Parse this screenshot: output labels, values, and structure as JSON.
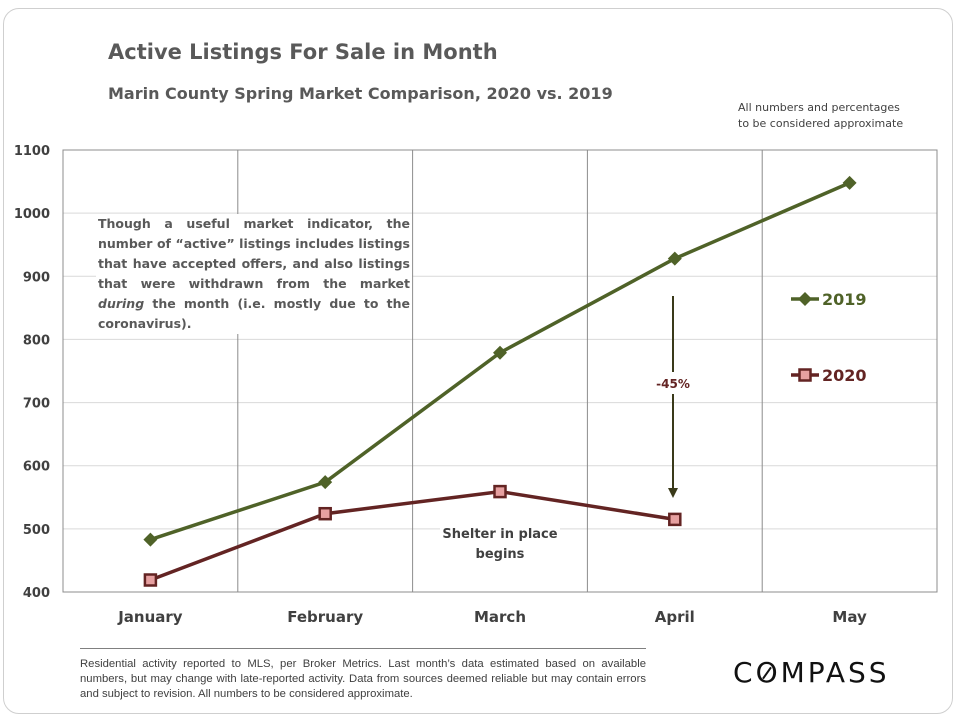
{
  "chart_data": {
    "type": "line",
    "title": "Active Listings For Sale in Month",
    "subtitle": "Marin County Spring Market Comparison,  2020 vs. 2019",
    "categories": [
      "January",
      "February",
      "March",
      "April",
      "May"
    ],
    "ylim": [
      400,
      1100
    ],
    "yticks": [
      400,
      500,
      600,
      700,
      800,
      900,
      1000,
      1100
    ],
    "grid": true,
    "legend_placement": "right",
    "series": [
      {
        "name": "2019",
        "values": [
          483,
          574,
          779,
          928,
          1048
        ],
        "color": "#4f6228",
        "marker": "diamond"
      },
      {
        "name": "2020",
        "values": [
          419,
          524,
          559,
          515,
          null
        ],
        "color": "#632423",
        "marker": "square",
        "marker_fill": "#e6a0a0"
      }
    ],
    "annotations": {
      "change": "-45%",
      "shelter": "Shelter in place begins",
      "note_parts": [
        "Though a useful market indicator, the number of “active” listings includes listings that have accepted offers, and also listings that were withdrawn from the market ",
        "during",
        " the month (i.e. mostly due to the coronavirus)."
      ]
    }
  },
  "approx_note": [
    "All numbers and percentages",
    "to be considered approximate"
  ],
  "footnote": "Residential activity reported to MLS, per Broker Metrics. Last month’s data estimated based on available numbers, but may change with late-reported activity. Data from sources deemed reliable but may contain errors and subject to revision. All numbers to be considered approximate.",
  "logo": "COMPASS"
}
